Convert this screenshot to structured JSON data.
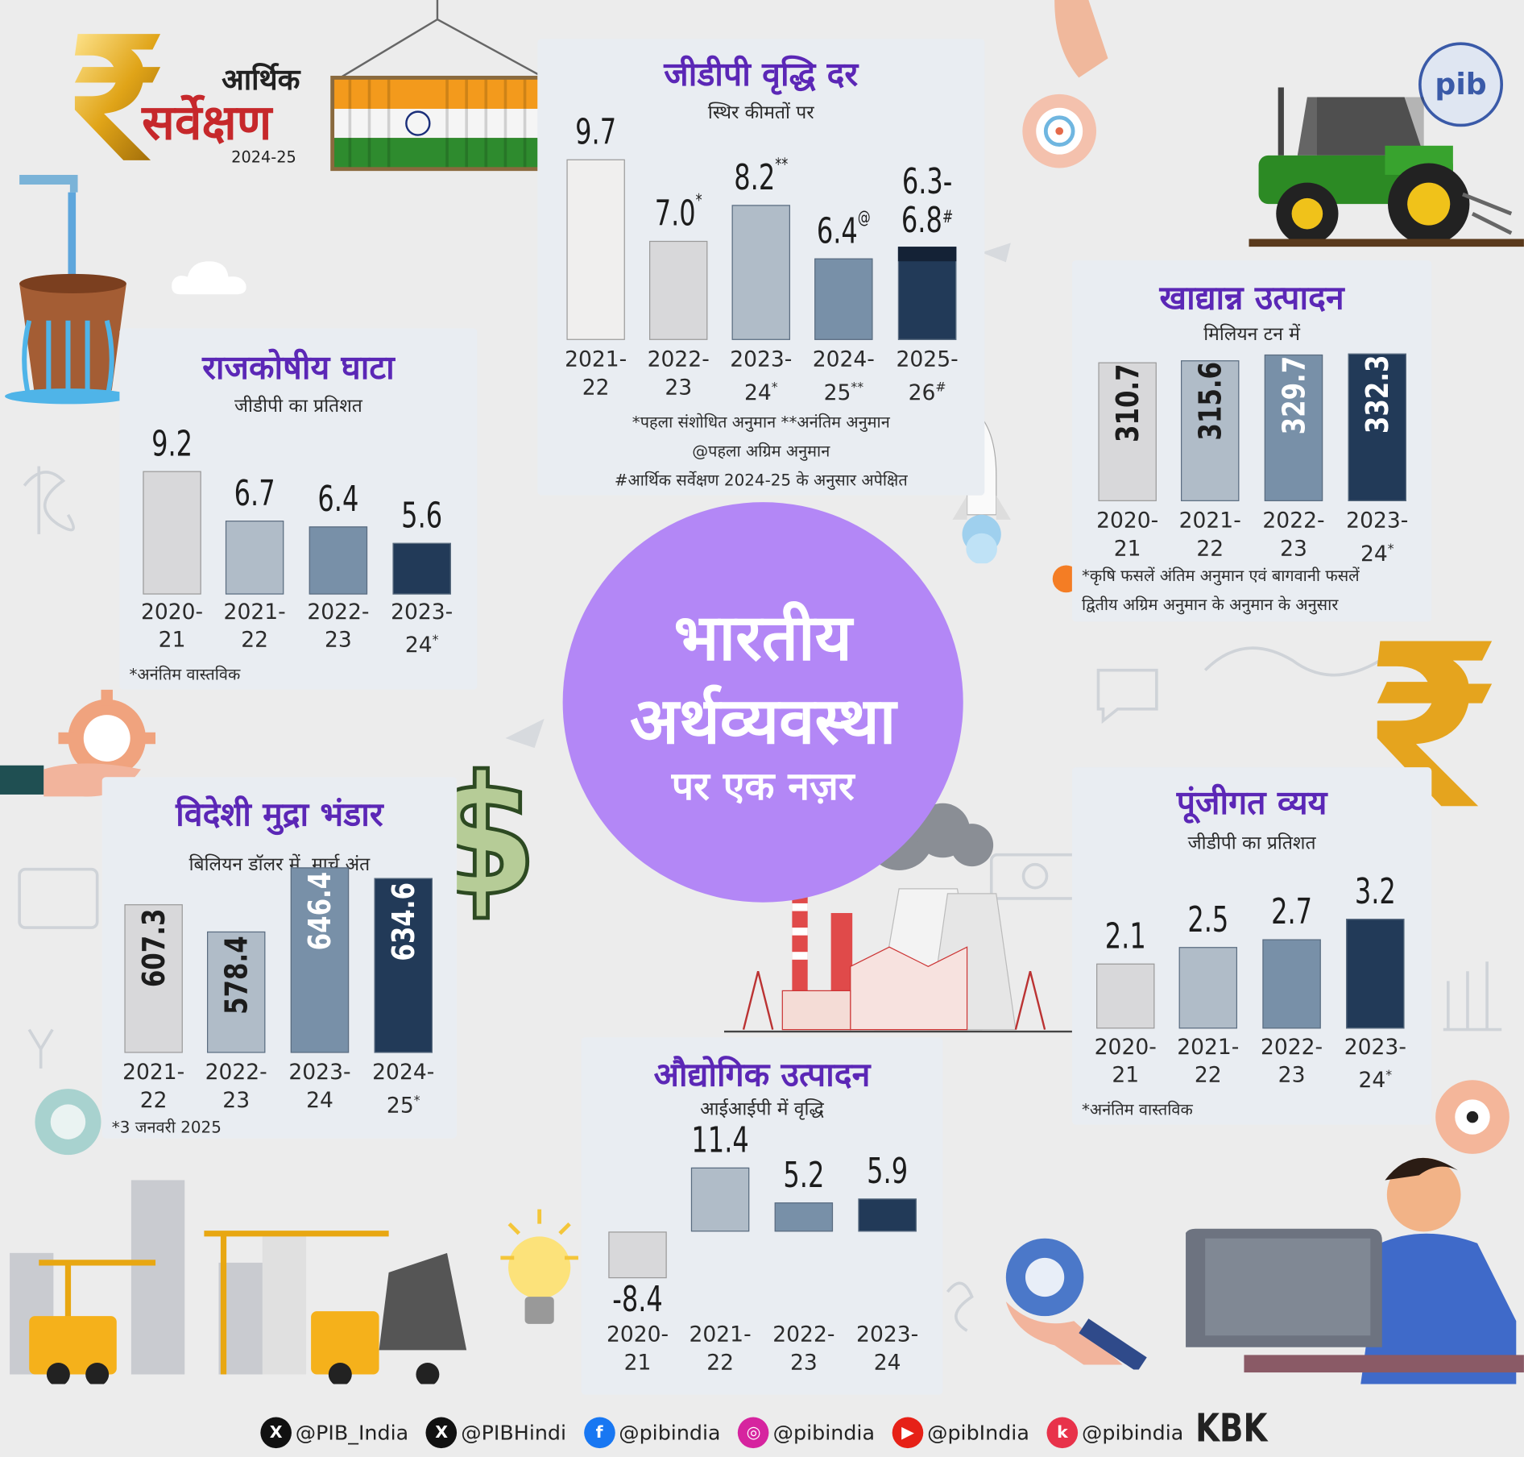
{
  "header": {
    "logo_title_line1": "आर्थिक",
    "logo_title_line2": "सर्वेक्षण",
    "logo_year": "2024-25",
    "rupee_symbol": "₹"
  },
  "center": {
    "line1": "भारतीय",
    "line2": "अर्थव्यवस्था",
    "line3": "पर एक नज़र"
  },
  "chart_data": [
    {
      "id": "gdp",
      "type": "bar",
      "title": "जीडीपी वृद्धि दर",
      "subtitle": "स्थिर कीमतों पर",
      "categories": [
        "2021-22",
        "2022-23",
        "2023-24*",
        "2024-25**",
        "2025-26#"
      ],
      "cat_lines": [
        [
          "2021-",
          "22"
        ],
        [
          "2022-",
          "23"
        ],
        [
          "2023-",
          "24*"
        ],
        [
          "2024-",
          "25**"
        ],
        [
          "2025-",
          "26#"
        ]
      ],
      "values": [
        9.7,
        7.0,
        8.2,
        6.4,
        6.8
      ],
      "range_low": 6.3,
      "value_labels": [
        "9.7",
        "7.0*",
        "8.2**",
        "6.4@",
        "6.3-6.8#"
      ],
      "notes": [
        "*पहला संशोधित अनुमान  **अनंतिम अनुमान",
        "@पहला अग्रिम अनुमान",
        "#आर्थिक सर्वेक्षण 2024-25 के अनुसार अपेक्षित"
      ],
      "colors": [
        "#f0efee",
        "#d8d8da",
        "#b0bcc8",
        "#7890a8",
        "#223a58"
      ]
    },
    {
      "id": "fiscal",
      "type": "bar",
      "title": "राजकोषीय घाटा",
      "subtitle": "जीडीपी का प्रतिशत",
      "categories": [
        "2020-21",
        "2021-22",
        "2022-23",
        "2023-24*"
      ],
      "cat_lines": [
        [
          "2020-",
          "21"
        ],
        [
          "2021-",
          "22"
        ],
        [
          "2022-",
          "23"
        ],
        [
          "2023-",
          "24*"
        ]
      ],
      "values": [
        9.2,
        6.7,
        6.4,
        5.6
      ],
      "value_labels": [
        "9.2",
        "6.7",
        "6.4",
        "5.6"
      ],
      "notes": [
        "*अनंतिम वास्तविक"
      ],
      "colors": [
        "#d8d8da",
        "#b0bcc8",
        "#7890a8",
        "#223a58"
      ]
    },
    {
      "id": "food",
      "type": "bar",
      "title": "खाद्यान्न उत्पादन",
      "subtitle": "मिलियन टन में",
      "categories": [
        "2020-21",
        "2021-22",
        "2022-23",
        "2023-24*"
      ],
      "cat_lines": [
        [
          "2020-",
          "21"
        ],
        [
          "2021-",
          "22"
        ],
        [
          "2022-",
          "23"
        ],
        [
          "2023-",
          "24*"
        ]
      ],
      "values": [
        310.7,
        315.6,
        329.7,
        332.3
      ],
      "value_labels": [
        "310.7",
        "315.6",
        "329.7",
        "332.3"
      ],
      "notes": [
        "*कृषि फसलें अंतिम अनुमान एवं बागवानी फसलें",
        "द्वितीय अग्रिम अनुमान के अनुमान के अनुसार"
      ],
      "colors": [
        "#d8d8da",
        "#b0bcc8",
        "#7890a8",
        "#223a58"
      ]
    },
    {
      "id": "forex",
      "type": "bar",
      "title": "विदेशी मुद्रा भंडार",
      "subtitle": "बिलियन डॉलर में, मार्च अंत",
      "categories": [
        "2021-22",
        "2022-23",
        "2023-24",
        "2024-25*"
      ],
      "cat_lines": [
        [
          "2021-",
          "22"
        ],
        [
          "2022-",
          "23"
        ],
        [
          "2023-",
          "24"
        ],
        [
          "2024-",
          "25*"
        ]
      ],
      "values": [
        607.3,
        578.4,
        646.4,
        634.6
      ],
      "value_labels": [
        "607.3",
        "578.4",
        "646.4",
        "634.6"
      ],
      "notes": [
        "*3 जनवरी 2025"
      ],
      "colors": [
        "#d8d8da",
        "#b0bcc8",
        "#7890a8",
        "#223a58"
      ]
    },
    {
      "id": "capex",
      "type": "bar",
      "title": "पूंजीगत व्यय",
      "subtitle": "जीडीपी का प्रतिशत",
      "categories": [
        "2020-21",
        "2021-22",
        "2022-23",
        "2023-24*"
      ],
      "cat_lines": [
        [
          "2020-",
          "21"
        ],
        [
          "2021-",
          "22"
        ],
        [
          "2022-",
          "23"
        ],
        [
          "2023-",
          "24*"
        ]
      ],
      "values": [
        2.1,
        2.5,
        2.7,
        3.2
      ],
      "value_labels": [
        "2.1",
        "2.5",
        "2.7",
        "3.2"
      ],
      "notes": [
        "*अनंतिम वास्तविक"
      ],
      "colors": [
        "#d8d8da",
        "#b0bcc8",
        "#7890a8",
        "#223a58"
      ]
    },
    {
      "id": "iip",
      "type": "bar",
      "title": "औद्योगिक उत्पादन",
      "subtitle": "आईआईपी में वृद्धि",
      "categories": [
        "2020-21",
        "2021-22",
        "2022-23",
        "2023-24"
      ],
      "cat_lines": [
        [
          "2020-",
          "21"
        ],
        [
          "2021-",
          "22"
        ],
        [
          "2022-",
          "23"
        ],
        [
          "2023-",
          "24"
        ]
      ],
      "values": [
        -8.4,
        11.4,
        5.2,
        5.9
      ],
      "value_labels": [
        "-8.4",
        "11.4",
        "5.2",
        "5.9"
      ],
      "notes": [],
      "colors": [
        "#d8d8da",
        "#b0bcc8",
        "#7890a8",
        "#223a58"
      ]
    }
  ],
  "footer": {
    "handles": [
      "@PIB_India",
      "@PIBHindi",
      "@pibindia",
      "@pibindia",
      "@pibIndia",
      "@pibindia"
    ],
    "icons": [
      "x-icon",
      "x-icon",
      "facebook-icon",
      "instagram-icon",
      "youtube-icon",
      "koo-icon"
    ],
    "icon_colors": [
      "#111111",
      "#111111",
      "#1877f2",
      "#d6249f",
      "#e62117",
      "#e8324a"
    ],
    "credit": "KBK"
  }
}
